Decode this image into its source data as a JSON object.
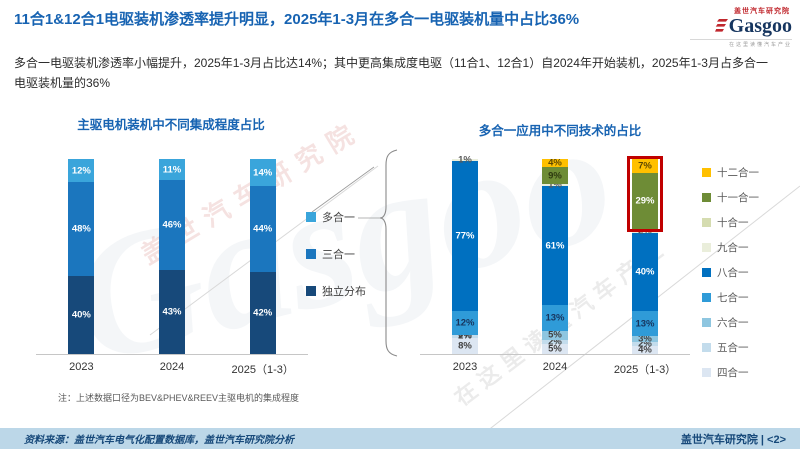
{
  "slide": {
    "title": "11合1&12合1电驱装机渗透率提升明显，2025年1-3月在多合一电驱装机量中占比36%",
    "subtitle": "多合一电驱装机渗透率小幅提升，2025年1-3月占比达14%；其中更高集成度电驱（11合1、12合1）自2024年开始装机，2025年1-3月占多合一电驱装机量的36%"
  },
  "logo": {
    "brand": "Gasgoo",
    "tagline": "盖世汽车研究院",
    "subtext": "在这里读懂汽车产业"
  },
  "watermark": {
    "big_text": "Gasgoo",
    "red_text": "盖世汽车研究院",
    "slogan": "在这里读懂汽车产业"
  },
  "footer": {
    "source": "资料来源：盖世汽车电气化配置数据库，盖世汽车研究院分析",
    "right": "盖世汽车研究院 | <2>"
  },
  "chart_data": [
    {
      "type": "bar",
      "stacked": true,
      "title": "主驱电机装机中不同集成程度占比",
      "categories": [
        "2023",
        "2024",
        "2025（1-3）"
      ],
      "ylim": [
        0,
        100
      ],
      "grid": false,
      "legend_position": "right",
      "note": "注：上述数据口径为BEV&PHEV&REEV主驱电机的集成程度",
      "series": [
        {
          "name": "独立分布",
          "color": "#17497a",
          "values": [
            40,
            43,
            42
          ],
          "labels": [
            "40%",
            "43%",
            "42%"
          ],
          "label_color": "#ffffff"
        },
        {
          "name": "三合一",
          "color": "#1b76be",
          "values": [
            48,
            46,
            44
          ],
          "labels": [
            "48%",
            "46%",
            "44%"
          ],
          "label_color": "#ffffff"
        },
        {
          "name": "多合一",
          "color": "#3aa5db",
          "values": [
            12,
            11,
            14
          ],
          "labels": [
            "12%",
            "11%",
            "14%"
          ],
          "label_color": "#ffffff"
        }
      ]
    },
    {
      "type": "bar",
      "stacked": true,
      "title": "多合一应用中不同技术的占比",
      "categories": [
        "2023",
        "2024",
        "2025（1-3）"
      ],
      "ylim": [
        0,
        100
      ],
      "grid": false,
      "legend_position": "right",
      "series": [
        {
          "name": "四合一",
          "color": "#dce6f2",
          "values": [
            8,
            5,
            4
          ],
          "labels": [
            "8%",
            "5%",
            "4%"
          ],
          "label_color": "#404040"
        },
        {
          "name": "五合一",
          "color": "#c3dcec",
          "values": [
            2,
            2,
            2
          ],
          "labels": [
            "2%",
            "2%",
            "2%"
          ],
          "label_color": "#404040"
        },
        {
          "name": "六合一",
          "color": "#8ec6e0",
          "values": [
            0,
            5,
            3
          ],
          "labels": [
            "0%",
            "5%",
            "3%"
          ],
          "label_color": "#404040"
        },
        {
          "name": "七合一",
          "color": "#2f9bd8",
          "values": [
            12,
            13,
            13
          ],
          "labels": [
            "12%",
            "13%",
            "13%"
          ],
          "label_color": "#17355e"
        },
        {
          "name": "八合一",
          "color": "#0070c0",
          "values": [
            77,
            61,
            40
          ],
          "labels": [
            "77%",
            "61%",
            "40%"
          ],
          "label_color": "#ffffff"
        },
        {
          "name": "九合一",
          "color": "#eaeedb",
          "values": [
            1,
            1,
            2
          ],
          "labels": [
            "1%",
            "1%",
            "2%"
          ],
          "label_color": "#595959"
        },
        {
          "name": "十合一",
          "color": "#d5dcb0",
          "values": [
            0,
            0,
            0
          ],
          "labels": [
            "",
            "",
            ""
          ],
          "label_color": "#595959"
        },
        {
          "name": "十一合一",
          "color": "#6e8c36",
          "values": [
            0,
            9,
            29
          ],
          "labels": [
            "",
            "9%",
            "29%"
          ],
          "label_color": "#ffffff",
          "label_colors": [
            "",
            "#2f3a10",
            "#ffffff"
          ]
        },
        {
          "name": "十二合一",
          "color": "#ffc000",
          "values": [
            0,
            4,
            7
          ],
          "labels": [
            "",
            "4%",
            "7%"
          ],
          "label_color": "#5e4700"
        }
      ],
      "highlight": {
        "category_index": 2,
        "top_percent": 36,
        "color": "#c00000"
      }
    }
  ]
}
